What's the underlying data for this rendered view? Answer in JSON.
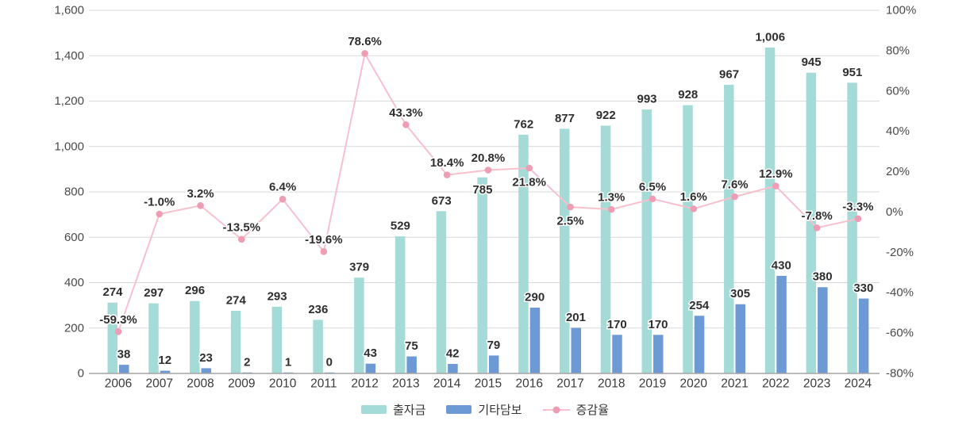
{
  "chart_data": {
    "type": "bar",
    "subtype": "grouped-bars-with-line-overlay",
    "title": "",
    "categories": [
      "2006",
      "2007",
      "2008",
      "2009",
      "2010",
      "2011",
      "2012",
      "2013",
      "2014",
      "2015",
      "2016",
      "2017",
      "2018",
      "2019",
      "2020",
      "2021",
      "2022",
      "2023",
      "2024"
    ],
    "series": [
      {
        "name": "출자금",
        "type": "bar",
        "color": "#a4dbd6",
        "values": [
          274,
          297,
          296,
          274,
          293,
          236,
          379,
          529,
          673,
          785,
          762,
          877,
          922,
          993,
          928,
          967,
          1006,
          945,
          951
        ],
        "labels": [
          "274",
          "297",
          "296",
          "274",
          "293",
          "236",
          "379",
          "529",
          "673",
          "785",
          "762",
          "877",
          "922",
          "993",
          "928",
          "967",
          "1,006",
          "945",
          "951"
        ],
        "label_low_indices": [
          9
        ],
        "bars_drawn_at_total_of_both_series": true
      },
      {
        "name": "기타담보",
        "type": "bar",
        "color": "#6d9ad4",
        "values": [
          38,
          12,
          23,
          2,
          1,
          0,
          43,
          75,
          42,
          79,
          290,
          201,
          170,
          170,
          254,
          305,
          430,
          380,
          330
        ],
        "labels": [
          "38",
          "12",
          "23",
          "2",
          "1",
          "0",
          "43",
          "75",
          "42",
          "79",
          "290",
          "201",
          "170",
          "170",
          "254",
          "305",
          "430",
          "380",
          "330"
        ]
      },
      {
        "name": "증감율",
        "type": "line",
        "axis": "right",
        "line_color": "#f7c0cd",
        "marker_color": "#ef9db4",
        "values": [
          -59.3,
          -1.0,
          3.2,
          -13.5,
          6.4,
          -19.6,
          78.6,
          43.3,
          18.4,
          20.8,
          21.8,
          2.5,
          1.3,
          6.5,
          1.6,
          7.6,
          12.9,
          -7.8,
          -3.3
        ],
        "labels": [
          "-59.3%",
          "-1.0%",
          "3.2%",
          "-13.5%",
          "6.4%",
          "-19.6%",
          "78.6%",
          "43.3%",
          "18.4%",
          "20.8%",
          "21.8%",
          "2.5%",
          "1.3%",
          "6.5%",
          "1.6%",
          "7.6%",
          "12.9%",
          "-7.8%",
          "-3.3%"
        ],
        "label_side": [
          "above",
          "above",
          "above",
          "above",
          "above",
          "above",
          "above",
          "above",
          "above",
          "above",
          "below",
          "below",
          "above",
          "above",
          "above",
          "above",
          "above",
          "above",
          "above"
        ]
      }
    ],
    "left_axis": {
      "min": 0,
      "max": 1600,
      "ticks": [
        "1,600",
        "1,400",
        "1,200",
        "1,000",
        "800",
        "600",
        "400",
        "200",
        "0"
      ]
    },
    "right_axis": {
      "min": -80,
      "max": 100,
      "ticks": [
        "100%",
        "80%",
        "60%",
        "40%",
        "20%",
        "0%",
        "-20%",
        "-40%",
        "-60%",
        "-80%"
      ]
    },
    "grid_color": "#d9d9d9",
    "axis_line_color": "#a3a3a3",
    "legend_position": "bottom",
    "legend": [
      "출자금",
      "기타담보",
      "증감율"
    ]
  }
}
